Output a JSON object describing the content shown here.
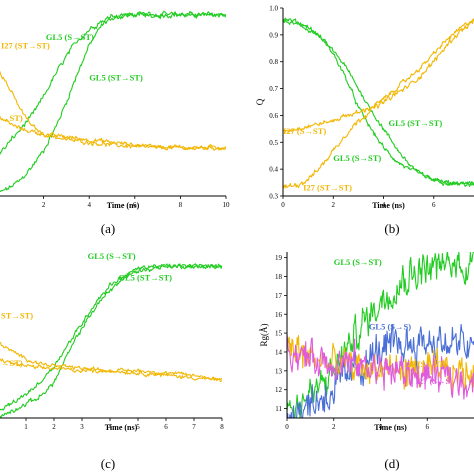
{
  "colors": {
    "gl5": "#22cc22",
    "i27": "#f2b705",
    "blue": "#4a6fd6",
    "magenta": "#e05ae0"
  },
  "chart_data": [
    {
      "type": "line",
      "panel_label": "(a)",
      "xlabel": "Time (ns)",
      "ylabel": "",
      "xlim": [
        0,
        10
      ],
      "ylim": [
        0.3,
        1.0
      ],
      "xticks": [
        "2",
        "4",
        "6",
        "8",
        "10"
      ],
      "yticks": [],
      "annotations": [
        {
          "text": "I27 (ST→ST)",
          "color": "i27",
          "x": 0.0,
          "y": 0.85
        },
        {
          "text": "GL5 (S→ST)",
          "color": "gl5",
          "x": 2.1,
          "y": 0.88
        },
        {
          "text": "GL5 (ST→ST)",
          "color": "gl5",
          "x": 4.0,
          "y": 0.73
        },
        {
          "text": "→ST)",
          "color": "i27",
          "x": 0.0,
          "y": 0.58
        }
      ],
      "series": [
        {
          "color": "gl5",
          "noise": 0.012,
          "x": [
            0,
            0.5,
            1,
            1.5,
            2,
            2.5,
            3,
            3.5,
            4,
            4.5,
            5,
            5.5,
            6,
            7,
            8,
            9,
            10
          ],
          "y": [
            0.31,
            0.33,
            0.36,
            0.41,
            0.47,
            0.55,
            0.65,
            0.76,
            0.86,
            0.93,
            0.97,
            0.975,
            0.975,
            0.975,
            0.975,
            0.975,
            0.975
          ]
        },
        {
          "color": "gl5",
          "noise": 0.012,
          "x": [
            0,
            0.5,
            1,
            1.5,
            2,
            2.5,
            3,
            3.5,
            4,
            4.5,
            5,
            6,
            7,
            8,
            10
          ],
          "y": [
            0.45,
            0.5,
            0.55,
            0.6,
            0.67,
            0.75,
            0.82,
            0.88,
            0.92,
            0.95,
            0.965,
            0.975,
            0.975,
            0.975,
            0.975
          ]
        },
        {
          "color": "i27",
          "noise": 0.01,
          "x": [
            0,
            0.5,
            1,
            1.5,
            2,
            3,
            4,
            5,
            6,
            7,
            8,
            10
          ],
          "y": [
            0.78,
            0.7,
            0.62,
            0.56,
            0.53,
            0.51,
            0.5,
            0.49,
            0.485,
            0.48,
            0.48,
            0.48
          ]
        },
        {
          "color": "i27",
          "noise": 0.01,
          "x": [
            0,
            0.5,
            1,
            1.5,
            2,
            3,
            4,
            5,
            6,
            7,
            8,
            10
          ],
          "y": [
            0.6,
            0.57,
            0.55,
            0.54,
            0.53,
            0.52,
            0.51,
            0.5,
            0.49,
            0.485,
            0.48,
            0.48
          ]
        }
      ]
    },
    {
      "type": "line",
      "panel_label": "(b)",
      "xlabel": "Time (ns)",
      "ylabel": "Q",
      "xlim": [
        0,
        7.6
      ],
      "ylim": [
        0.3,
        1.0
      ],
      "xticks": [
        "0",
        "2",
        "4",
        "6"
      ],
      "yticks": [
        "0.3",
        "0.4",
        "0.5",
        "0.6",
        "0.7",
        "0.8",
        "0.9",
        "1.0"
      ],
      "annotations": [
        {
          "text": "GL5 (ST→ST)",
          "color": "gl5",
          "x": 4.2,
          "y": 0.56
        },
        {
          "text": "I27 (S→ST)",
          "color": "i27",
          "x": 0.0,
          "y": 0.53
        },
        {
          "text": "GL5 (S→ST)",
          "color": "gl5",
          "x": 2.0,
          "y": 0.43
        },
        {
          "text": "I27 (ST→ST)",
          "color": "i27",
          "x": 0.8,
          "y": 0.32
        }
      ],
      "series": [
        {
          "color": "gl5",
          "noise": 0.01,
          "x": [
            0,
            0.5,
            1,
            1.5,
            2,
            2.5,
            3,
            3.5,
            4,
            4.5,
            5,
            5.5,
            6,
            6.5,
            7,
            7.6
          ],
          "y": [
            0.96,
            0.95,
            0.93,
            0.89,
            0.83,
            0.74,
            0.63,
            0.55,
            0.48,
            0.43,
            0.4,
            0.38,
            0.36,
            0.35,
            0.345,
            0.345
          ]
        },
        {
          "color": "gl5",
          "noise": 0.01,
          "x": [
            0,
            0.5,
            1,
            1.5,
            2,
            2.5,
            3,
            3.5,
            4,
            4.5,
            5,
            5.5,
            6,
            6.5,
            7,
            7.6
          ],
          "y": [
            0.95,
            0.94,
            0.92,
            0.89,
            0.84,
            0.78,
            0.7,
            0.62,
            0.55,
            0.48,
            0.42,
            0.38,
            0.36,
            0.35,
            0.345,
            0.345
          ]
        },
        {
          "color": "i27",
          "noise": 0.01,
          "x": [
            0,
            0.5,
            1,
            1.5,
            2,
            2.5,
            3,
            3.5,
            4,
            4.5,
            5,
            5.5,
            6,
            6.5,
            7,
            7.6
          ],
          "y": [
            0.54,
            0.55,
            0.56,
            0.57,
            0.58,
            0.6,
            0.61,
            0.63,
            0.66,
            0.7,
            0.74,
            0.78,
            0.83,
            0.88,
            0.92,
            0.96
          ]
        },
        {
          "color": "i27",
          "noise": 0.012,
          "x": [
            0,
            0.4,
            0.8,
            1.2,
            1.6,
            2,
            2.5,
            3,
            3.5,
            4,
            4.5,
            5,
            5.5,
            6,
            6.5,
            7,
            7.6
          ],
          "y": [
            0.33,
            0.34,
            0.35,
            0.38,
            0.42,
            0.47,
            0.53,
            0.58,
            0.62,
            0.65,
            0.68,
            0.71,
            0.75,
            0.8,
            0.86,
            0.91,
            0.95
          ]
        }
      ]
    },
    {
      "type": "line",
      "panel_label": "(c)",
      "xlabel": "Time (ns)",
      "ylabel": "",
      "xlim": [
        0,
        8
      ],
      "ylim": [
        0.3,
        1.0
      ],
      "xticks": [
        "1",
        "2",
        "3",
        "4",
        "5",
        "6",
        "7",
        "8"
      ],
      "yticks": [],
      "annotations": [
        {
          "text": "GL5 (S→ST)",
          "color": "gl5",
          "x": 3.2,
          "y": 0.97
        },
        {
          "text": "GL5 (ST→ST)",
          "color": "gl5",
          "x": 4.3,
          "y": 0.88
        },
        {
          "text": "ST→ST)",
          "color": "i27",
          "x": 0.0,
          "y": 0.72
        },
        {
          "text": "→ST)",
          "color": "i27",
          "x": 0.0,
          "y": 0.52
        }
      ],
      "series": [
        {
          "color": "gl5",
          "noise": 0.012,
          "x": [
            0,
            0.5,
            1,
            1.5,
            2,
            2.5,
            3,
            3.5,
            4,
            4.5,
            5,
            5.5,
            6,
            7,
            8
          ],
          "y": [
            0.33,
            0.36,
            0.4,
            0.45,
            0.52,
            0.61,
            0.7,
            0.79,
            0.86,
            0.9,
            0.93,
            0.94,
            0.94,
            0.94,
            0.94
          ]
        },
        {
          "color": "gl5",
          "noise": 0.012,
          "x": [
            0,
            0.5,
            1,
            1.5,
            2,
            2.5,
            3,
            3.5,
            4,
            4.5,
            5,
            6,
            7,
            8
          ],
          "y": [
            0.3,
            0.33,
            0.36,
            0.39,
            0.45,
            0.57,
            0.68,
            0.77,
            0.84,
            0.89,
            0.92,
            0.94,
            0.94,
            0.94
          ]
        },
        {
          "color": "i27",
          "noise": 0.01,
          "x": [
            0,
            0.5,
            1,
            1.5,
            2,
            3,
            4,
            5,
            6,
            7,
            8
          ],
          "y": [
            0.62,
            0.58,
            0.55,
            0.53,
            0.52,
            0.51,
            0.5,
            0.49,
            0.48,
            0.47,
            0.46
          ]
        },
        {
          "color": "i27",
          "noise": 0.01,
          "x": [
            0,
            0.5,
            1,
            1.5,
            2,
            3,
            4,
            5,
            6,
            7,
            8
          ],
          "y": [
            0.55,
            0.53,
            0.52,
            0.51,
            0.51,
            0.5,
            0.5,
            0.5,
            0.49,
            0.48,
            0.46
          ]
        }
      ]
    },
    {
      "type": "line",
      "panel_label": "(d)",
      "xlabel": "Time (ns)",
      "ylabel": "Rg(Å)",
      "xlim": [
        0,
        8
      ],
      "ylim": [
        10.5,
        19.3
      ],
      "xticks": [
        "0",
        "2",
        "4",
        "6"
      ],
      "yticks": [
        "11",
        "12",
        "13",
        "14",
        "15",
        "16",
        "17",
        "18",
        "19"
      ],
      "annotations": [
        {
          "text": "GL5 (S→ST)",
          "color": "gl5",
          "x": 2.0,
          "y": 18.6
        },
        {
          "text": "GL5 (S→S)",
          "color": "blue",
          "x": 3.5,
          "y": 15.2
        },
        {
          "text": "I27 (S→ST)",
          "color": "i27",
          "x": 5.0,
          "y": 13.2
        },
        {
          "text": "I27 (S→S",
          "color": "magenta",
          "x": 5.5,
          "y": 12.3
        }
      ],
      "series": [
        {
          "color": "gl5",
          "noise": 0.09,
          "x": [
            0,
            0.5,
            1,
            1.5,
            2,
            2.5,
            3,
            3.5,
            4,
            4.5,
            5,
            5.5,
            6,
            6.5,
            7,
            8
          ],
          "y": [
            11.0,
            11.3,
            11.7,
            12.2,
            13.0,
            14.0,
            15.0,
            15.9,
            16.7,
            17.4,
            17.9,
            18.3,
            18.5,
            18.55,
            18.6,
            18.6
          ]
        },
        {
          "color": "blue",
          "noise": 0.1,
          "x": [
            0,
            0.5,
            1,
            1.5,
            2,
            2.5,
            3,
            3.5,
            4,
            4.5,
            5,
            5.5,
            6,
            6.5,
            7,
            8
          ],
          "y": [
            10.9,
            11.1,
            11.3,
            11.6,
            12.0,
            12.5,
            13.1,
            13.6,
            14.0,
            14.2,
            14.4,
            14.5,
            14.6,
            14.5,
            14.4,
            14.3
          ]
        },
        {
          "color": "i27",
          "noise": 0.09,
          "x": [
            0,
            0.5,
            1,
            1.5,
            2,
            3,
            4,
            5,
            6,
            7,
            8
          ],
          "y": [
            14.4,
            14.0,
            13.7,
            13.5,
            13.3,
            13.2,
            13.1,
            13.0,
            12.9,
            12.9,
            12.9
          ]
        },
        {
          "color": "magenta",
          "noise": 0.09,
          "x": [
            0,
            0.5,
            1,
            1.5,
            2,
            3,
            4,
            5,
            6,
            7,
            8
          ],
          "y": [
            14.2,
            13.9,
            13.7,
            13.6,
            13.5,
            13.3,
            13.1,
            12.9,
            12.7,
            12.6,
            12.5
          ]
        }
      ]
    }
  ]
}
